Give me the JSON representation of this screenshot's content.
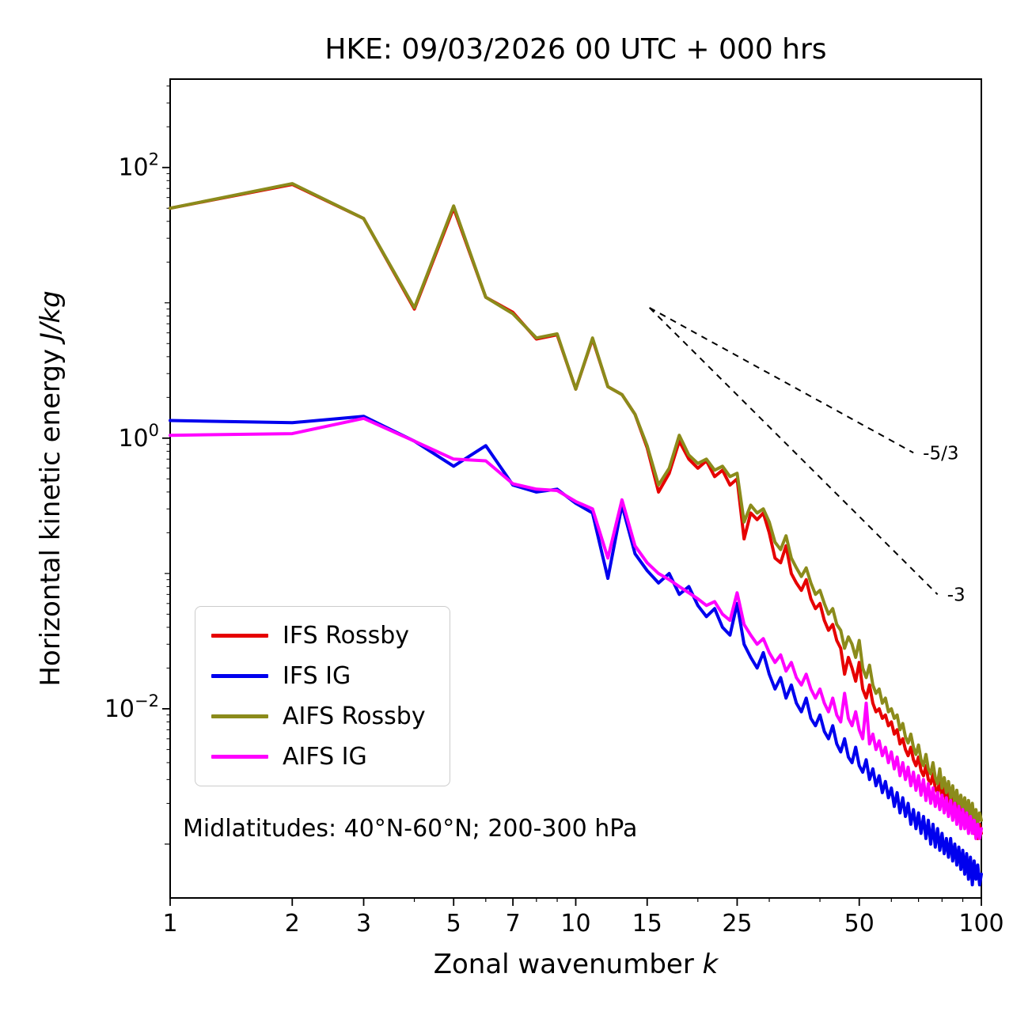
{
  "title": "HKE: 09/03/2026 00 UTC + 000 hrs",
  "annotation": "Midlatitudes: 40°N-60°N; 200-300 hPa",
  "chart_data": {
    "type": "line",
    "title": "HKE: 09/03/2026 00 UTC + 000 hrs",
    "xlabel": {
      "text": "Zonal wavenumber ",
      "math": "k"
    },
    "ylabel": {
      "text": "Horizontal kinetic energy ",
      "math": "J/kg"
    },
    "xscale": "log",
    "yscale": "log",
    "xlim": [
      1,
      100
    ],
    "ylim": [
      0.0004,
      450
    ],
    "xticks": [
      1,
      2,
      3,
      5,
      7,
      10,
      15,
      25,
      50,
      100
    ],
    "xtick_minor": [
      4,
      6,
      8,
      9,
      20,
      30,
      40,
      60,
      70,
      80,
      90
    ],
    "ytick_exponents": [
      2,
      0,
      -2
    ],
    "grid": false,
    "legend_position": "lower-left",
    "x_description": "integer zonal wavenumbers k = 1..100",
    "series": [
      {
        "name": "IFS Rossby",
        "color": "#e60000",
        "values": [
          50,
          75,
          42,
          9,
          50,
          11,
          8.5,
          5.4,
          5.8,
          2.3,
          5.4,
          2.4,
          2.1,
          1.5,
          0.85,
          0.4,
          0.55,
          0.95,
          0.7,
          0.6,
          0.68,
          0.52,
          0.58,
          0.45,
          0.5,
          0.18,
          0.28,
          0.25,
          0.28,
          0.2,
          0.13,
          0.12,
          0.16,
          0.1,
          0.085,
          0.075,
          0.09,
          0.065,
          0.055,
          0.06,
          0.045,
          0.038,
          0.042,
          0.032,
          0.028,
          0.018,
          0.024,
          0.02,
          0.016,
          0.022,
          0.014,
          0.012,
          0.015,
          0.011,
          0.0095,
          0.01,
          0.0085,
          0.009,
          0.0075,
          0.008,
          0.0065,
          0.007,
          0.0055,
          0.006,
          0.005,
          0.0045,
          0.0052,
          0.0042,
          0.0038,
          0.0044,
          0.0035,
          0.0032,
          0.0038,
          0.003,
          0.0028,
          0.0033,
          0.0026,
          0.0024,
          0.003,
          0.0022,
          0.0026,
          0.002,
          0.0024,
          0.0018,
          0.0022,
          0.0017,
          0.0021,
          0.0016,
          0.0019,
          0.0015,
          0.0018,
          0.0014,
          0.0017,
          0.0013,
          0.0016,
          0.0012,
          0.0015,
          0.0011,
          0.0014,
          0.0012
        ]
      },
      {
        "name": "IFS IG",
        "color": "#0000ee",
        "values": [
          1.35,
          1.3,
          1.45,
          0.95,
          0.62,
          0.88,
          0.45,
          0.4,
          0.42,
          0.33,
          0.28,
          0.092,
          0.32,
          0.14,
          0.105,
          0.085,
          0.1,
          0.07,
          0.08,
          0.058,
          0.048,
          0.055,
          0.04,
          0.035,
          0.06,
          0.03,
          0.024,
          0.02,
          0.026,
          0.018,
          0.014,
          0.017,
          0.012,
          0.015,
          0.011,
          0.0095,
          0.012,
          0.0085,
          0.0075,
          0.009,
          0.0068,
          0.006,
          0.0075,
          0.0055,
          0.0048,
          0.006,
          0.0044,
          0.004,
          0.0052,
          0.0038,
          0.0034,
          0.0042,
          0.003,
          0.0036,
          0.0027,
          0.0032,
          0.0024,
          0.0029,
          0.0022,
          0.0026,
          0.0019,
          0.0024,
          0.0017,
          0.0022,
          0.0016,
          0.002,
          0.0014,
          0.0018,
          0.0013,
          0.0017,
          0.0012,
          0.0016,
          0.0011,
          0.0015,
          0.001,
          0.0014,
          0.00095,
          0.0013,
          0.0009,
          0.0012,
          0.00085,
          0.0011,
          0.0008,
          0.0011,
          0.00075,
          0.001,
          0.0007,
          0.00095,
          0.00065,
          0.0009,
          0.0006,
          0.00085,
          0.00055,
          0.0008,
          0.0005,
          0.00075,
          0.00055,
          0.0007,
          0.0005,
          0.0006
        ]
      },
      {
        "name": "AIFS Rossby",
        "color": "#8b8b1b",
        "values": [
          50,
          76,
          42,
          9.2,
          52,
          11,
          8.3,
          5.5,
          5.9,
          2.3,
          5.5,
          2.4,
          2.1,
          1.5,
          0.88,
          0.45,
          0.6,
          1.05,
          0.75,
          0.65,
          0.7,
          0.58,
          0.62,
          0.52,
          0.55,
          0.24,
          0.32,
          0.28,
          0.3,
          0.24,
          0.17,
          0.15,
          0.19,
          0.13,
          0.11,
          0.095,
          0.11,
          0.085,
          0.07,
          0.075,
          0.06,
          0.05,
          0.055,
          0.042,
          0.038,
          0.028,
          0.034,
          0.03,
          0.024,
          0.032,
          0.02,
          0.017,
          0.021,
          0.015,
          0.013,
          0.014,
          0.011,
          0.012,
          0.0095,
          0.01,
          0.0085,
          0.009,
          0.007,
          0.0078,
          0.0062,
          0.0056,
          0.0065,
          0.0052,
          0.0046,
          0.0054,
          0.0042,
          0.0038,
          0.0046,
          0.0036,
          0.0033,
          0.004,
          0.0031,
          0.0028,
          0.0036,
          0.0026,
          0.0031,
          0.0024,
          0.0029,
          0.0022,
          0.0027,
          0.002,
          0.0025,
          0.0019,
          0.0023,
          0.0018,
          0.0022,
          0.0017,
          0.0021,
          0.0016,
          0.002,
          0.0015,
          0.0018,
          0.0014,
          0.0017,
          0.0015
        ]
      },
      {
        "name": "AIFS IG",
        "color": "#ff00ff",
        "values": [
          1.05,
          1.08,
          1.4,
          0.95,
          0.7,
          0.68,
          0.46,
          0.42,
          0.41,
          0.34,
          0.3,
          0.13,
          0.35,
          0.16,
          0.12,
          0.1,
          0.09,
          0.08,
          0.072,
          0.065,
          0.058,
          0.062,
          0.05,
          0.045,
          0.072,
          0.042,
          0.035,
          0.03,
          0.033,
          0.026,
          0.022,
          0.025,
          0.019,
          0.022,
          0.017,
          0.015,
          0.018,
          0.014,
          0.012,
          0.014,
          0.011,
          0.0095,
          0.012,
          0.009,
          0.008,
          0.013,
          0.0085,
          0.0075,
          0.0095,
          0.007,
          0.006,
          0.011,
          0.0055,
          0.0065,
          0.005,
          0.0058,
          0.0045,
          0.0052,
          0.004,
          0.0048,
          0.0036,
          0.0044,
          0.0032,
          0.004,
          0.003,
          0.0037,
          0.0027,
          0.0034,
          0.0025,
          0.0032,
          0.0023,
          0.003,
          0.0021,
          0.0028,
          0.002,
          0.0026,
          0.0019,
          0.0024,
          0.0018,
          0.0023,
          0.0017,
          0.0022,
          0.0016,
          0.0021,
          0.0015,
          0.002,
          0.0014,
          0.0019,
          0.0013,
          0.0018,
          0.0013,
          0.0017,
          0.0012,
          0.0016,
          0.0012,
          0.0015,
          0.0011,
          0.0014,
          0.0011,
          0.0013
        ]
      }
    ],
    "reference_lines": [
      {
        "label": "-5/3",
        "slope": "-5/3",
        "points": [
          [
            15.2,
            9.2
          ],
          [
            68,
            0.78
          ]
        ]
      },
      {
        "label": "-3",
        "slope": "-3",
        "points": [
          [
            15.2,
            9.2
          ],
          [
            78,
            0.07
          ]
        ]
      }
    ]
  }
}
